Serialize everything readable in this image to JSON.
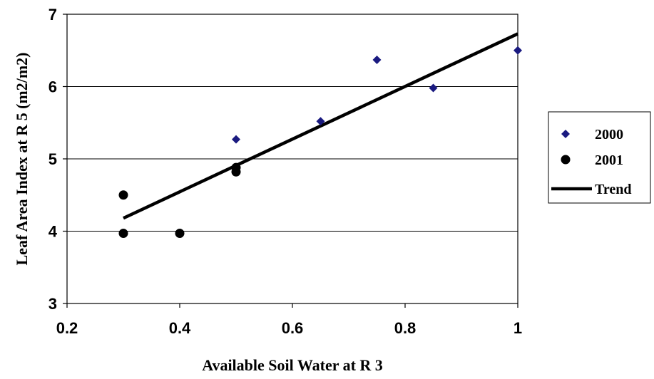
{
  "chart_data": {
    "type": "scatter",
    "xlabel": "Available Soil Water at R 3",
    "ylabel": "Leaf Area Index at R 5 (m2/m2)",
    "xlim": [
      0.2,
      1.0
    ],
    "ylim": [
      3,
      7
    ],
    "x_ticks": [
      0.2,
      0.4,
      0.6,
      0.8,
      1.0
    ],
    "x_tick_labels": [
      "0.2",
      "0.4",
      "0.6",
      "0.8",
      "1"
    ],
    "y_ticks": [
      3,
      4,
      5,
      6,
      7
    ],
    "y_tick_labels": [
      "3",
      "4",
      "5",
      "6",
      "7"
    ],
    "grid": "horizontal",
    "legend_position": "right",
    "series": [
      {
        "name": "2000",
        "marker": "diamond",
        "color": "#1a1a80",
        "points": [
          {
            "x": 0.5,
            "y": 5.27
          },
          {
            "x": 0.65,
            "y": 5.52
          },
          {
            "x": 0.75,
            "y": 6.37
          },
          {
            "x": 0.85,
            "y": 5.98
          },
          {
            "x": 1.0,
            "y": 6.5
          }
        ]
      },
      {
        "name": "2001",
        "marker": "circle",
        "color": "#000000",
        "points": [
          {
            "x": 0.3,
            "y": 4.5
          },
          {
            "x": 0.3,
            "y": 3.97
          },
          {
            "x": 0.4,
            "y": 3.97
          },
          {
            "x": 0.5,
            "y": 4.88
          },
          {
            "x": 0.5,
            "y": 4.82
          }
        ]
      },
      {
        "name": "Trend",
        "marker": "line",
        "color": "#000000",
        "points": [
          {
            "x": 0.3,
            "y": 4.18
          },
          {
            "x": 1.0,
            "y": 6.73
          }
        ]
      }
    ]
  }
}
